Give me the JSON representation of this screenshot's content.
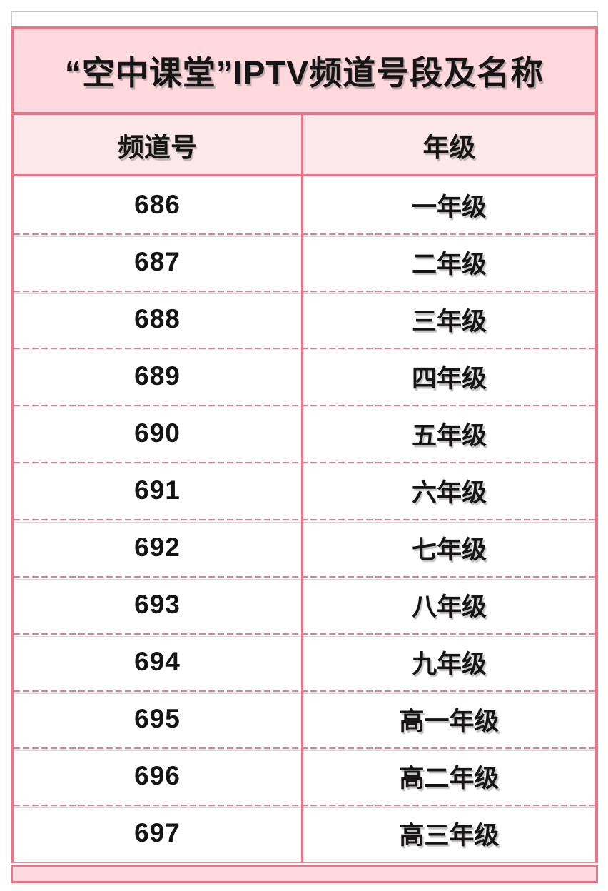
{
  "chart_data": {
    "type": "table",
    "title": "“空中课堂”IPTV频道号段及名称",
    "columns": [
      "频道号",
      "年级"
    ],
    "rows": [
      [
        "686",
        "一年级"
      ],
      [
        "687",
        "二年级"
      ],
      [
        "688",
        "三年级"
      ],
      [
        "689",
        "四年级"
      ],
      [
        "690",
        "五年级"
      ],
      [
        "691",
        "六年级"
      ],
      [
        "692",
        "七年级"
      ],
      [
        "693",
        "八年级"
      ],
      [
        "694",
        "九年级"
      ],
      [
        "695",
        "高一年级"
      ],
      [
        "696",
        "高二年级"
      ],
      [
        "697",
        "高三年级"
      ]
    ],
    "layout": {
      "header_position": "top",
      "row_separator": "dashed",
      "grid": "partial"
    }
  },
  "colors": {
    "accent_border": "#ee7386",
    "dashed_separator": "#f0798e",
    "title_bg": "#ffd9de",
    "header_bg": "#fde9eb",
    "footer_bg": "#ffd9de",
    "top_rule_gray": "#c3c3c3",
    "text": "#151515"
  }
}
